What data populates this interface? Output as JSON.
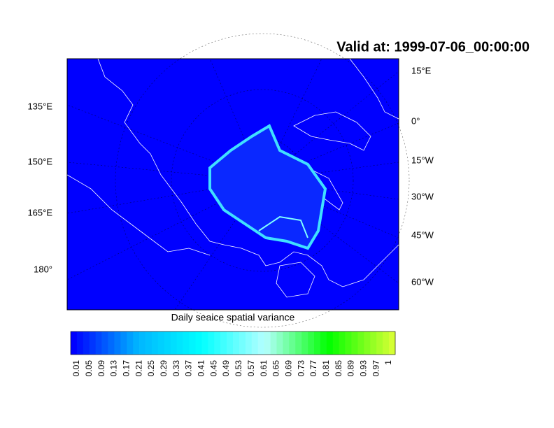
{
  "title": "Valid at: 1999-07-06_00:00:00",
  "map": {
    "left_labels": [
      "135°E",
      "150°E",
      "165°E",
      "180°"
    ],
    "right_labels": [
      "15°E",
      "0°",
      "15°W",
      "30°W",
      "45°W",
      "60°W"
    ],
    "background_color": "#0000ff"
  },
  "colorbar": {
    "label": "Daily seaice spatial variance",
    "tick_labels": [
      "0.01",
      "0.05",
      "0.09",
      "0.13",
      "0.17",
      "0.21",
      "0.25",
      "0.29",
      "0.33",
      "0.37",
      "0.41",
      "0.45",
      "0.49",
      "0.53",
      "0.57",
      "0.61",
      "0.65",
      "0.69",
      "0.73",
      "0.77",
      "0.81",
      "0.85",
      "0.89",
      "0.93",
      "0.97",
      "1"
    ],
    "colormap": [
      "#0000ff",
      "#00b4ff",
      "#00ffff",
      "#b4ffff",
      "#00ff00",
      "#d4ff33"
    ]
  }
}
